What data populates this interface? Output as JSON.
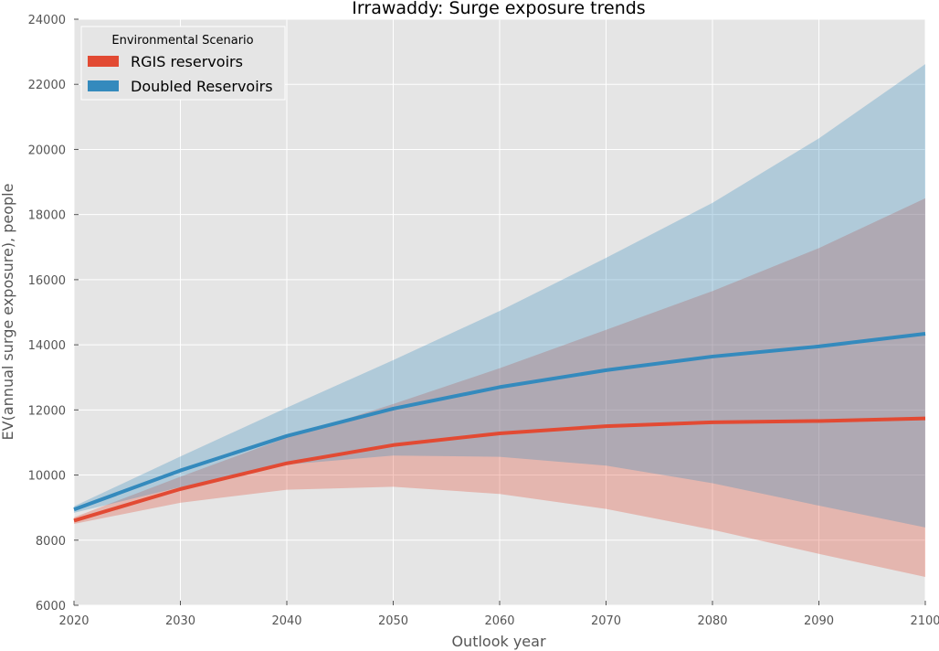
{
  "chart_data": {
    "type": "line",
    "title": "Irrawaddy: Surge exposure trends",
    "xlabel": "Outlook year",
    "ylabel": "EV(annual surge exposure), people",
    "xlim": [
      2020,
      2100
    ],
    "ylim": [
      6000,
      24000
    ],
    "xticks": [
      2020,
      2030,
      2040,
      2050,
      2060,
      2070,
      2080,
      2090,
      2100
    ],
    "yticks": [
      6000,
      8000,
      10000,
      12000,
      14000,
      16000,
      18000,
      20000,
      22000,
      24000
    ],
    "grid": true,
    "legend": {
      "title": "Environmental Scenario",
      "placement": "top-left"
    },
    "x": [
      2020,
      2030,
      2040,
      2050,
      2060,
      2070,
      2080,
      2090,
      2100
    ],
    "series": [
      {
        "name": "RGIS reservoirs",
        "color": "#e24a33",
        "values": [
          8600,
          9570,
          10360,
          10920,
          11280,
          11500,
          11620,
          11660,
          11740
        ],
        "lower": [
          8500,
          9150,
          9550,
          9640,
          9420,
          8960,
          8320,
          7580,
          6870
        ],
        "upper": [
          8700,
          9950,
          11150,
          12180,
          13280,
          14460,
          15650,
          16970,
          18500
        ]
      },
      {
        "name": "Doubled Reservoirs",
        "color": "#348abd",
        "values": [
          8940,
          10140,
          11200,
          12040,
          12700,
          13220,
          13640,
          13950,
          14340
        ],
        "lower": [
          8840,
          9630,
          10320,
          10600,
          10560,
          10290,
          9750,
          9060,
          8390
        ],
        "upper": [
          9040,
          10570,
          12070,
          13530,
          15040,
          16670,
          18360,
          20340,
          22620
        ]
      }
    ]
  }
}
